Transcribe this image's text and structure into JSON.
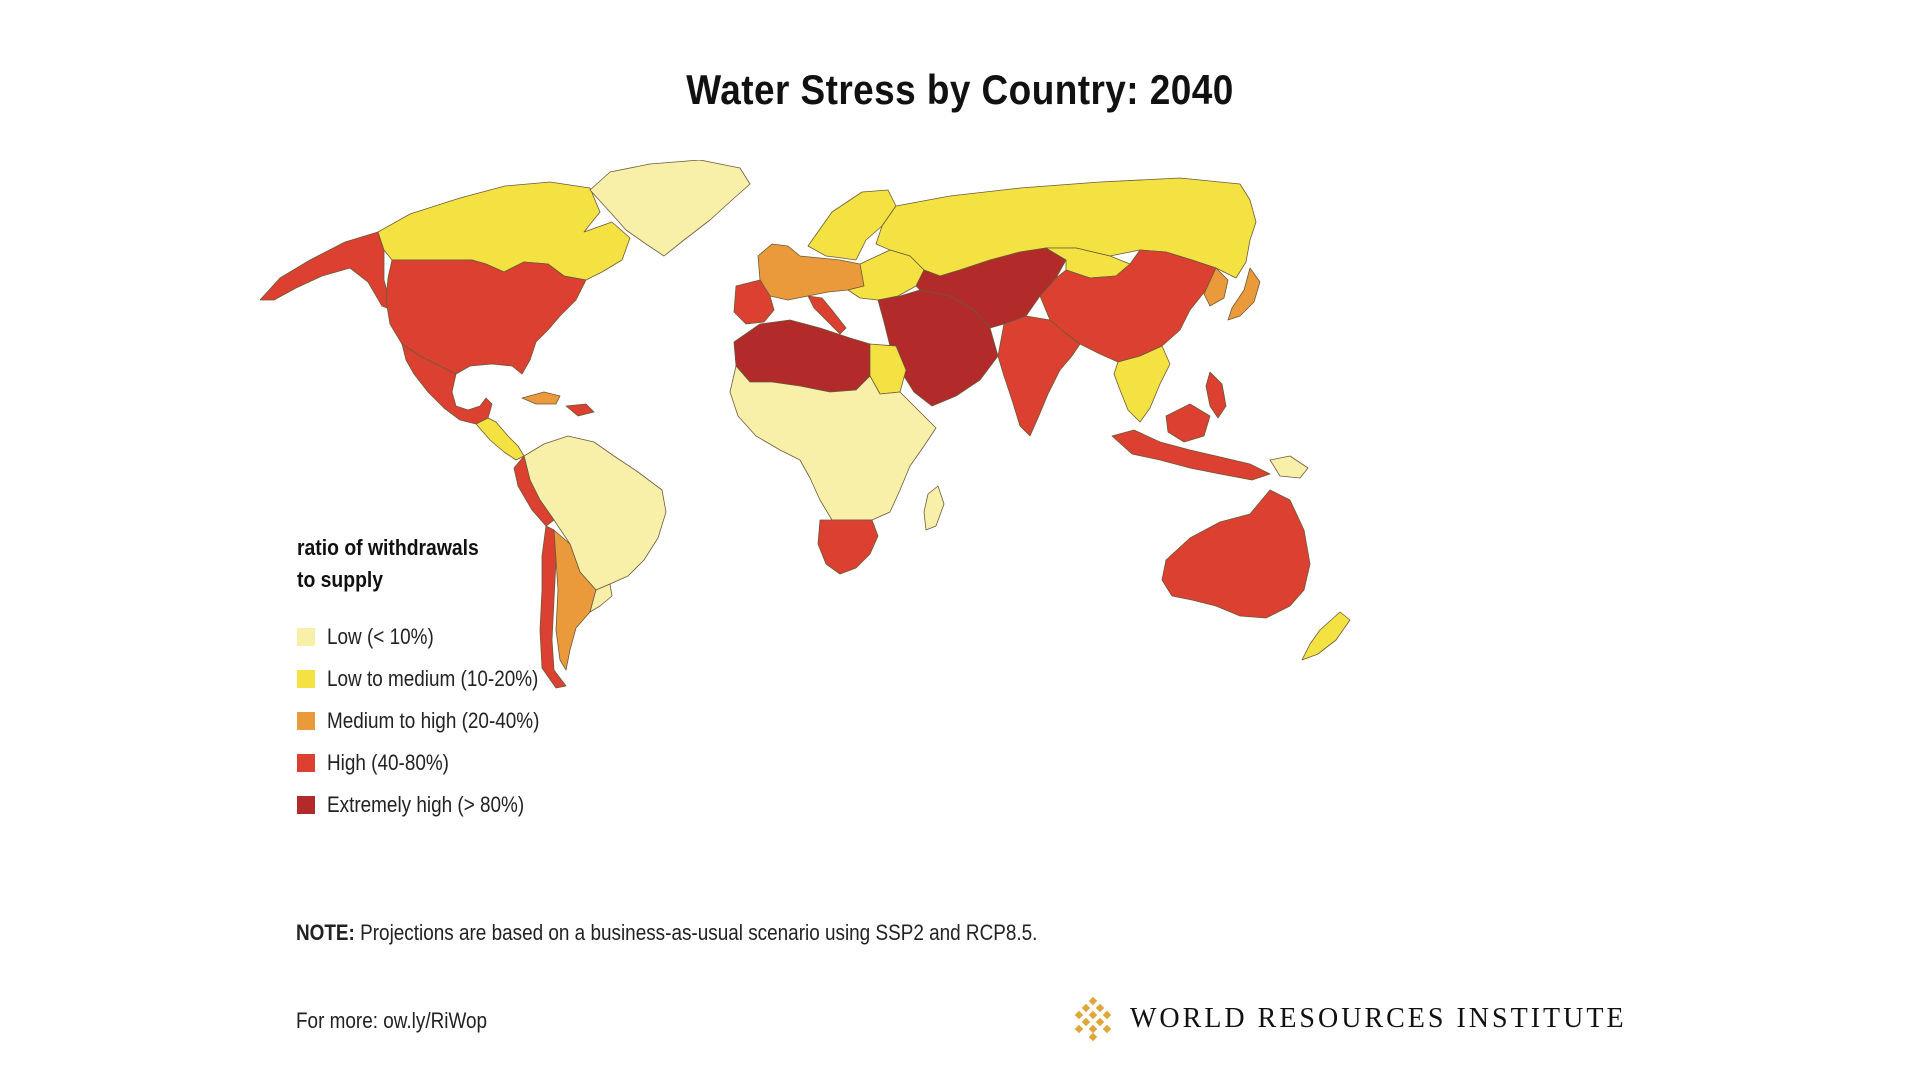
{
  "title": "Water Stress by Country: 2040",
  "legend": {
    "title_line1": "ratio of withdrawals",
    "title_line2": "to supply",
    "items": [
      {
        "label": "Low (< 10%)",
        "color": "#f8f0a8"
      },
      {
        "label": "Low to medium (10-20%)",
        "color": "#f4e242"
      },
      {
        "label": "Medium to high  (20-40%)",
        "color": "#ea9a3a"
      },
      {
        "label": "High (40-80%)",
        "color": "#dc4030"
      },
      {
        "label": "Extremely high (> 80%)",
        "color": "#b22a2a"
      }
    ]
  },
  "map": {
    "regions": [
      {
        "name": "alaska",
        "level": "High (40-80%)"
      },
      {
        "name": "canada",
        "level": "Low to medium (10-20%)"
      },
      {
        "name": "greenland",
        "level": "Low (< 10%)"
      },
      {
        "name": "united-states",
        "level": "High (40-80%)"
      },
      {
        "name": "mexico",
        "level": "High (40-80%)"
      },
      {
        "name": "central-america",
        "level": "Low to medium (10-20%)"
      },
      {
        "name": "caribbean",
        "level": "Medium to high  (20-40%)"
      },
      {
        "name": "south-america-north",
        "level": "Low (< 10%)"
      },
      {
        "name": "peru",
        "level": "High (40-80%)"
      },
      {
        "name": "chile",
        "level": "High (40-80%)"
      },
      {
        "name": "argentina",
        "level": "Medium to high  (20-40%)"
      },
      {
        "name": "uruguay",
        "level": "Low (< 10%)"
      },
      {
        "name": "scandinavia",
        "level": "Low to medium (10-20%)"
      },
      {
        "name": "russia",
        "level": "Low to medium (10-20%)"
      },
      {
        "name": "western-europe",
        "level": "Medium to high  (20-40%)"
      },
      {
        "name": "iberia",
        "level": "High (40-80%)"
      },
      {
        "name": "italy",
        "level": "High (40-80%)"
      },
      {
        "name": "eastern-europe",
        "level": "Low to medium (10-20%)"
      },
      {
        "name": "north-africa",
        "level": "Extremely high (> 80%)"
      },
      {
        "name": "egypt",
        "level": "Low to medium (10-20%)"
      },
      {
        "name": "sub-saharan-africa",
        "level": "Low (< 10%)"
      },
      {
        "name": "southern-africa",
        "level": "High (40-80%)"
      },
      {
        "name": "madagascar",
        "level": "Low (< 10%)"
      },
      {
        "name": "middle-east",
        "level": "Extremely high (> 80%)"
      },
      {
        "name": "central-asia",
        "level": "Extremely high (> 80%)"
      },
      {
        "name": "india",
        "level": "High (40-80%)"
      },
      {
        "name": "china",
        "level": "High (40-80%)"
      },
      {
        "name": "mongolia",
        "level": "Low to medium (10-20%)"
      },
      {
        "name": "korea-japan",
        "level": "Medium to high  (20-40%)"
      },
      {
        "name": "southeast-asia",
        "level": "Low to medium (10-20%)"
      },
      {
        "name": "indonesia",
        "level": "High (40-80%)"
      },
      {
        "name": "papua-new-guinea",
        "level": "Low (< 10%)"
      },
      {
        "name": "australia",
        "level": "High (40-80%)"
      },
      {
        "name": "new-zealand",
        "level": "Low to medium (10-20%)"
      }
    ]
  },
  "note": {
    "label": "NOTE:",
    "text": " Projections are based on a business-as-usual scenario using SSP2 and RCP8.5."
  },
  "more": "For more: ow.ly/RiWop",
  "logo": {
    "text": "WORLD RESOURCES INSTITUTE",
    "color": "#e0a63a"
  }
}
